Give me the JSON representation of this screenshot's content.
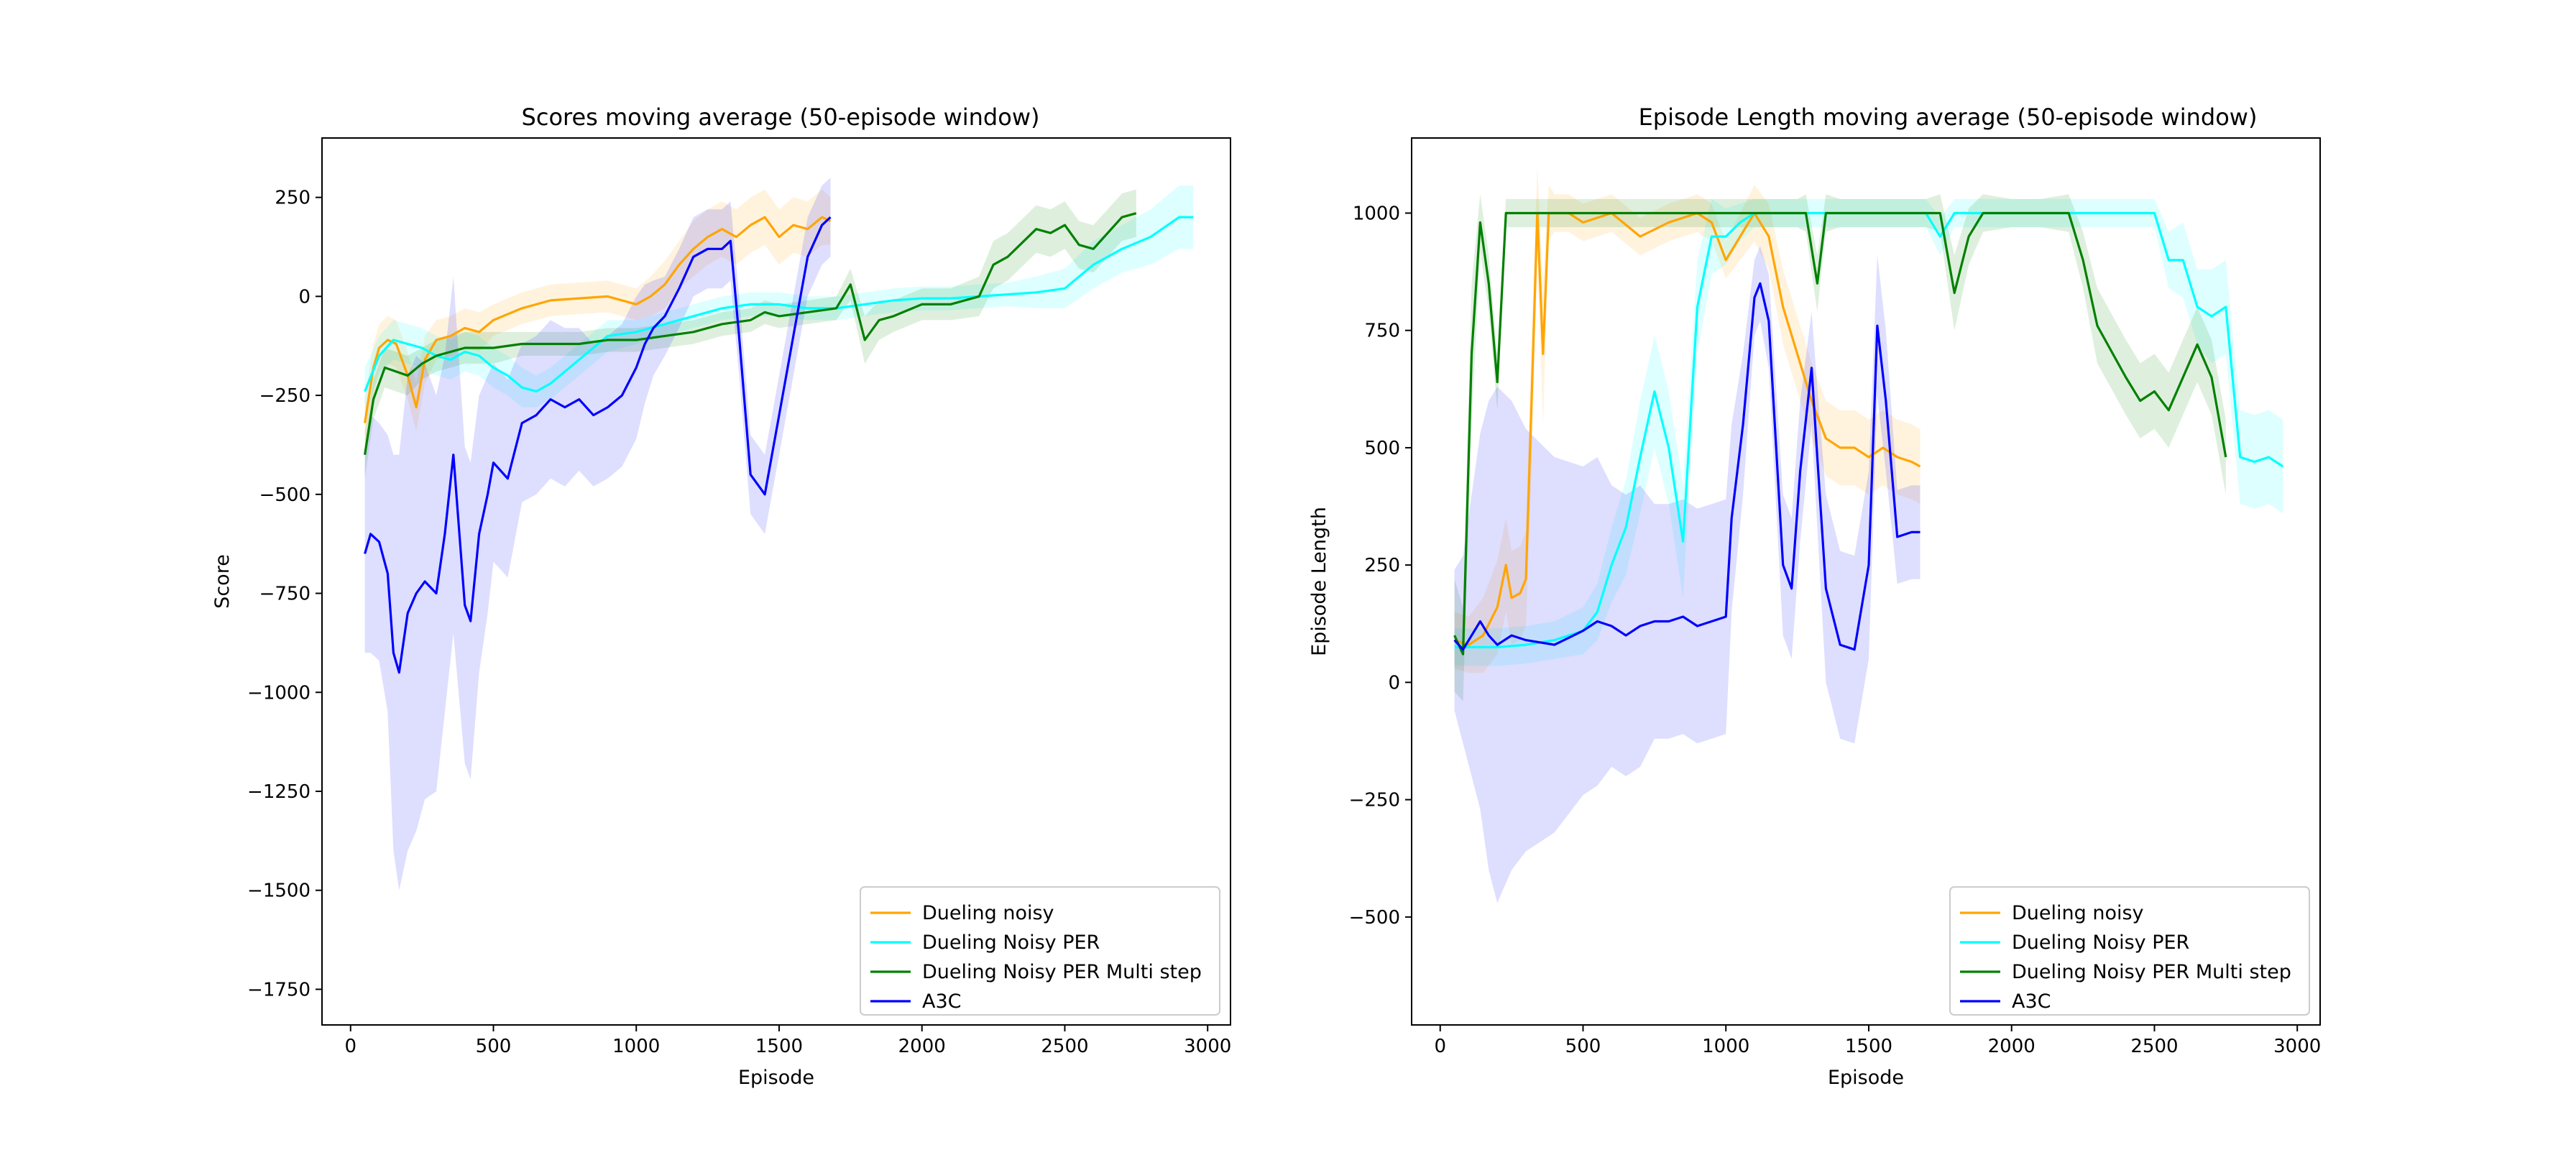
{
  "chart_data": [
    {
      "type": "line",
      "title": "Scores moving average (50-episode window)",
      "xlabel": "Episode",
      "ylabel": "Score",
      "xlim": [
        -100,
        3080
      ],
      "ylim": [
        -1840,
        400
      ],
      "x_ticks": [
        0,
        500,
        1000,
        1500,
        2000,
        2500,
        3000
      ],
      "y_ticks": [
        250,
        0,
        -250,
        -500,
        -750,
        -1000,
        -1250,
        -1500,
        -1750
      ],
      "y_tick_labels": [
        "250",
        "0",
        "−250",
        "−500",
        "−750",
        "−1000",
        "−1250",
        "−1500",
        "−1750"
      ],
      "grid": false,
      "legend_position": "lower-right",
      "series": [
        {
          "name": "Dueling noisy",
          "color": "#ffa500",
          "x": [
            50,
            80,
            100,
            130,
            160,
            200,
            230,
            260,
            300,
            350,
            400,
            450,
            500,
            600,
            700,
            800,
            900,
            1000,
            1050,
            1100,
            1150,
            1200,
            1250,
            1300,
            1350,
            1400,
            1450,
            1500,
            1550,
            1600,
            1650,
            1680
          ],
          "y": [
            -320,
            -180,
            -130,
            -110,
            -120,
            -200,
            -280,
            -160,
            -110,
            -100,
            -80,
            -90,
            -60,
            -30,
            -10,
            -5,
            0,
            -20,
            0,
            30,
            80,
            120,
            150,
            170,
            150,
            180,
            200,
            150,
            180,
            170,
            200,
            190
          ],
          "band": [
            60,
            60,
            60,
            60,
            60,
            60,
            60,
            60,
            50,
            50,
            50,
            50,
            40,
            40,
            40,
            40,
            40,
            40,
            50,
            60,
            60,
            70,
            70,
            70,
            70,
            70,
            70,
            70,
            70,
            70,
            70,
            60
          ]
        },
        {
          "name": "Dueling Noisy PER",
          "color": "#00ffff",
          "x": [
            50,
            100,
            150,
            200,
            250,
            300,
            350,
            400,
            450,
            500,
            550,
            600,
            650,
            700,
            800,
            900,
            1000,
            1100,
            1200,
            1300,
            1400,
            1500,
            1600,
            1700,
            1800,
            1900,
            2000,
            2100,
            2200,
            2300,
            2400,
            2500,
            2600,
            2700,
            2800,
            2900,
            2950
          ],
          "y": [
            -240,
            -150,
            -110,
            -120,
            -130,
            -150,
            -160,
            -140,
            -150,
            -180,
            -200,
            -230,
            -240,
            -220,
            -160,
            -100,
            -90,
            -70,
            -50,
            -30,
            -20,
            -20,
            -30,
            -30,
            -20,
            -10,
            -5,
            -5,
            0,
            5,
            10,
            20,
            80,
            120,
            150,
            200,
            200
          ],
          "band": [
            60,
            50,
            50,
            50,
            50,
            50,
            50,
            50,
            50,
            50,
            50,
            50,
            40,
            40,
            40,
            40,
            30,
            30,
            30,
            30,
            30,
            30,
            30,
            30,
            30,
            30,
            30,
            30,
            30,
            30,
            40,
            50,
            60,
            60,
            70,
            80,
            80
          ]
        },
        {
          "name": "Dueling Noisy PER Multi step",
          "color": "#008000",
          "x": [
            50,
            80,
            120,
            160,
            200,
            250,
            300,
            400,
            500,
            600,
            700,
            800,
            900,
            1000,
            1100,
            1200,
            1300,
            1400,
            1450,
            1500,
            1600,
            1700,
            1750,
            1800,
            1850,
            1900,
            2000,
            2100,
            2200,
            2250,
            2300,
            2400,
            2450,
            2500,
            2550,
            2600,
            2700,
            2750
          ],
          "y": [
            -400,
            -260,
            -180,
            -190,
            -200,
            -170,
            -150,
            -130,
            -130,
            -120,
            -120,
            -120,
            -110,
            -110,
            -100,
            -90,
            -70,
            -60,
            -40,
            -50,
            -40,
            -30,
            30,
            -110,
            -60,
            -50,
            -20,
            -20,
            0,
            80,
            100,
            170,
            160,
            180,
            130,
            120,
            200,
            210
          ],
          "band": [
            60,
            50,
            50,
            50,
            50,
            40,
            40,
            40,
            40,
            30,
            30,
            30,
            30,
            30,
            30,
            30,
            30,
            30,
            30,
            30,
            30,
            30,
            40,
            60,
            50,
            40,
            40,
            40,
            50,
            60,
            60,
            60,
            60,
            60,
            60,
            60,
            60,
            60
          ]
        },
        {
          "name": "A3C",
          "color": "#0000ff",
          "x": [
            50,
            70,
            100,
            130,
            150,
            170,
            200,
            230,
            260,
            300,
            330,
            360,
            400,
            420,
            450,
            480,
            500,
            550,
            600,
            650,
            700,
            750,
            800,
            850,
            900,
            950,
            1000,
            1030,
            1060,
            1100,
            1150,
            1200,
            1250,
            1300,
            1330,
            1360,
            1400,
            1450,
            1500,
            1550,
            1600,
            1650,
            1680
          ],
          "y": [
            -650,
            -600,
            -620,
            -700,
            -900,
            -950,
            -800,
            -750,
            -720,
            -750,
            -600,
            -400,
            -780,
            -820,
            -600,
            -500,
            -420,
            -460,
            -320,
            -300,
            -260,
            -280,
            -260,
            -300,
            -280,
            -250,
            -180,
            -120,
            -80,
            -50,
            20,
            100,
            120,
            120,
            140,
            -100,
            -450,
            -500,
            -300,
            -100,
            100,
            180,
            200
          ],
          "band": [
            250,
            300,
            300,
            350,
            500,
            550,
            600,
            600,
            550,
            500,
            450,
            450,
            400,
            400,
            350,
            300,
            250,
            250,
            200,
            200,
            200,
            200,
            180,
            180,
            180,
            180,
            180,
            150,
            120,
            100,
            100,
            100,
            100,
            100,
            100,
            100,
            100,
            100,
            100,
            100,
            100,
            100,
            100
          ]
        }
      ],
      "legend": [
        "Dueling noisy",
        "Dueling Noisy PER",
        "Dueling Noisy PER Multi step",
        "A3C"
      ]
    },
    {
      "type": "line",
      "title": "Episode Length moving average (50-episode window)",
      "xlabel": "Episode",
      "ylabel": "Episode Length",
      "xlim": [
        -100,
        3080
      ],
      "ylim": [
        -730,
        1160
      ],
      "x_ticks": [
        0,
        500,
        1000,
        1500,
        2000,
        2500,
        3000
      ],
      "y_ticks": [
        1000,
        750,
        500,
        250,
        0,
        -250,
        -500
      ],
      "y_tick_labels": [
        "1000",
        "750",
        "500",
        "250",
        "0",
        "−250",
        "−500"
      ],
      "grid": false,
      "legend_position": "lower-right",
      "series": [
        {
          "name": "Dueling noisy",
          "color": "#ffa500",
          "x": [
            50,
            100,
            150,
            200,
            230,
            250,
            280,
            300,
            320,
            340,
            360,
            380,
            400,
            450,
            500,
            600,
            700,
            800,
            900,
            950,
            1000,
            1050,
            1100,
            1150,
            1200,
            1250,
            1300,
            1350,
            1400,
            1450,
            1500,
            1550,
            1600,
            1650,
            1680
          ],
          "y": [
            90,
            80,
            100,
            160,
            250,
            180,
            190,
            220,
            600,
            1000,
            700,
            1000,
            1000,
            1000,
            980,
            1000,
            950,
            980,
            1000,
            980,
            900,
            950,
            1000,
            950,
            800,
            700,
            600,
            520,
            500,
            500,
            480,
            500,
            480,
            470,
            460
          ],
          "band": [
            60,
            60,
            80,
            100,
            100,
            100,
            100,
            100,
            150,
            100,
            150,
            60,
            40,
            40,
            40,
            40,
            40,
            40,
            40,
            40,
            40,
            50,
            60,
            70,
            80,
            80,
            80,
            80,
            80,
            80,
            80,
            80,
            80,
            80,
            80
          ]
        },
        {
          "name": "Dueling Noisy PER",
          "color": "#00ffff",
          "x": [
            50,
            100,
            200,
            300,
            400,
            500,
            550,
            600,
            650,
            700,
            750,
            800,
            850,
            900,
            950,
            1000,
            1050,
            1100,
            1200,
            1300,
            1400,
            1500,
            1600,
            1700,
            1750,
            1800,
            1900,
            2000,
            2100,
            2200,
            2300,
            2400,
            2500,
            2550,
            2600,
            2650,
            2700,
            2750,
            2800,
            2850,
            2900,
            2950
          ],
          "y": [
            75,
            75,
            75,
            80,
            90,
            110,
            150,
            250,
            330,
            480,
            620,
            500,
            300,
            800,
            950,
            950,
            980,
            1000,
            1000,
            1000,
            1000,
            1000,
            1000,
            1000,
            950,
            1000,
            1000,
            1000,
            1000,
            1000,
            1000,
            1000,
            1000,
            900,
            900,
            800,
            780,
            800,
            480,
            470,
            480,
            460
          ],
          "band": [
            40,
            40,
            40,
            40,
            40,
            50,
            60,
            80,
            100,
            120,
            120,
            120,
            120,
            100,
            80,
            60,
            40,
            30,
            30,
            30,
            30,
            30,
            30,
            30,
            40,
            30,
            30,
            30,
            30,
            30,
            30,
            30,
            30,
            60,
            80,
            80,
            100,
            100,
            100,
            100,
            100,
            100
          ]
        },
        {
          "name": "Dueling Noisy PER Multi step",
          "color": "#008000",
          "x": [
            50,
            80,
            110,
            140,
            170,
            200,
            230,
            260,
            300,
            400,
            500,
            600,
            700,
            800,
            900,
            1000,
            1100,
            1200,
            1250,
            1280,
            1320,
            1350,
            1400,
            1500,
            1600,
            1700,
            1750,
            1800,
            1850,
            1900,
            2000,
            2100,
            2200,
            2250,
            2300,
            2400,
            2450,
            2500,
            2550,
            2600,
            2650,
            2700,
            2750
          ],
          "y": [
            100,
            60,
            700,
            980,
            850,
            640,
            1000,
            1000,
            1000,
            1000,
            1000,
            1000,
            1000,
            1000,
            1000,
            1000,
            1000,
            1000,
            1000,
            1000,
            850,
            1000,
            1000,
            1000,
            1000,
            1000,
            1000,
            830,
            950,
            1000,
            1000,
            1000,
            1000,
            900,
            760,
            650,
            600,
            620,
            580,
            650,
            720,
            650,
            480
          ],
          "band": [
            120,
            100,
            150,
            60,
            60,
            60,
            30,
            30,
            30,
            30,
            30,
            30,
            30,
            30,
            30,
            30,
            30,
            30,
            30,
            40,
            60,
            40,
            30,
            30,
            30,
            30,
            40,
            80,
            60,
            40,
            30,
            30,
            40,
            60,
            80,
            80,
            80,
            80,
            80,
            80,
            80,
            80,
            80
          ]
        },
        {
          "name": "A3C",
          "color": "#0000ff",
          "x": [
            50,
            80,
            110,
            140,
            170,
            200,
            250,
            300,
            400,
            500,
            550,
            600,
            650,
            700,
            750,
            800,
            850,
            900,
            950,
            1000,
            1020,
            1060,
            1100,
            1120,
            1150,
            1200,
            1230,
            1260,
            1300,
            1320,
            1350,
            1400,
            1450,
            1500,
            1530,
            1560,
            1600,
            1650,
            1680
          ],
          "y": [
            90,
            70,
            100,
            130,
            100,
            80,
            100,
            90,
            80,
            110,
            130,
            120,
            100,
            120,
            130,
            130,
            140,
            120,
            130,
            140,
            350,
            550,
            820,
            850,
            770,
            250,
            200,
            450,
            670,
            480,
            200,
            80,
            70,
            250,
            760,
            600,
            310,
            320,
            320
          ],
          "band": [
            150,
            200,
            300,
            400,
            500,
            550,
            500,
            450,
            400,
            350,
            350,
            300,
            300,
            300,
            250,
            250,
            250,
            250,
            250,
            250,
            200,
            150,
            80,
            80,
            100,
            150,
            150,
            150,
            120,
            150,
            200,
            200,
            200,
            200,
            150,
            150,
            100,
            100,
            100
          ]
        }
      ],
      "legend": [
        "Dueling noisy",
        "Dueling Noisy PER",
        "Dueling Noisy PER Multi step",
        "A3C"
      ]
    }
  ]
}
